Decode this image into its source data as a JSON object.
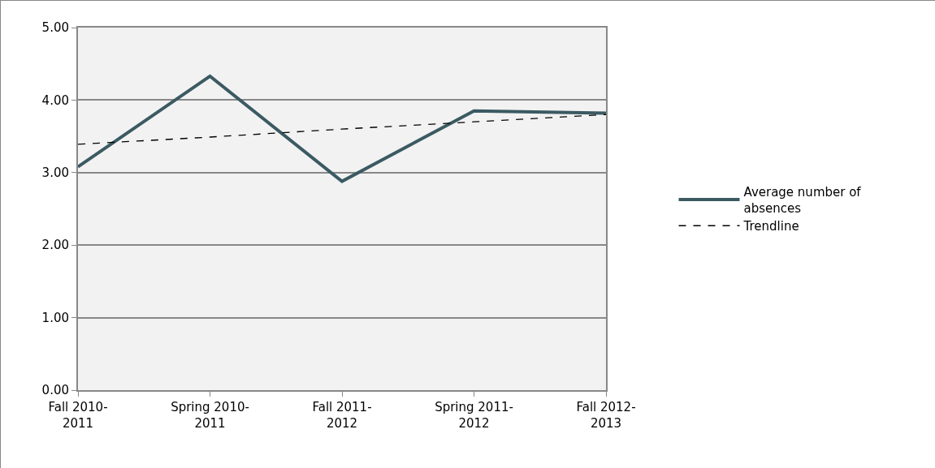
{
  "chart_data": {
    "type": "line",
    "categories": [
      "Fall 2010-2011",
      "Spring 2010-2011",
      "Fall 2011-2012",
      "Spring 2011-2012",
      "Fall 2012-2013"
    ],
    "series": [
      {
        "name": "Average number of absences",
        "color": "#3b5a62",
        "values": [
          3.08,
          4.33,
          2.88,
          3.85,
          3.82
        ]
      },
      {
        "name": "Trendline",
        "color": "#000000",
        "line_style": "dashed",
        "values": [
          3.39,
          3.49,
          3.6,
          3.7,
          3.8
        ]
      }
    ],
    "ylim": [
      0,
      5
    ],
    "yticks": [
      {
        "value": 0,
        "label": "0.00"
      },
      {
        "value": 1,
        "label": "1.00"
      },
      {
        "value": 2,
        "label": "2.00"
      },
      {
        "value": 3,
        "label": "3.00"
      },
      {
        "value": 4,
        "label": "4.00"
      },
      {
        "value": 5,
        "label": "5.00"
      }
    ],
    "grid": "y",
    "legend": "right",
    "marker": "none"
  }
}
